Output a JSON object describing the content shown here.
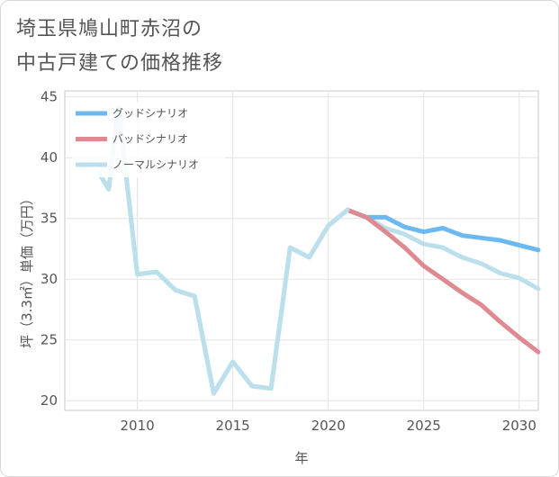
{
  "title": {
    "line1": "埼玉県鳩山町赤沼の",
    "line2": "中古戸建ての価格推移"
  },
  "chart_data": {
    "type": "line",
    "title": "埼玉県鳩山町赤沼の中古戸建ての価格推移",
    "xlabel": "年",
    "ylabel": "坪（3.3㎡）単価（万円）",
    "xlim": [
      2006.2,
      2031
    ],
    "ylim": [
      19.2,
      45.5
    ],
    "xticks": [
      2010,
      2015,
      2020,
      2025,
      2030
    ],
    "yticks": [
      20,
      25,
      30,
      35,
      40,
      45
    ],
    "grid": true,
    "legend_position": "top-left",
    "series": [
      {
        "name": "グッドシナリオ",
        "color": "#6cb8f0",
        "x": [
          2021,
          2022,
          2023,
          2024,
          2025,
          2026,
          2027,
          2028,
          2029,
          2030,
          2031
        ],
        "y": [
          35.7,
          35.1,
          35.1,
          34.3,
          33.9,
          34.2,
          33.6,
          33.4,
          33.2,
          32.8,
          32.4
        ]
      },
      {
        "name": "バッドシナリオ",
        "color": "#de8a90",
        "x": [
          2021,
          2022,
          2023,
          2024,
          2025,
          2026,
          2027,
          2028,
          2029,
          2030,
          2031
        ],
        "y": [
          35.7,
          35.1,
          33.9,
          32.6,
          31.1,
          30.0,
          28.9,
          27.9,
          26.5,
          25.2,
          24.0
        ]
      },
      {
        "name": "ノーマルシナリオ",
        "color": "#bcdfec",
        "x": [
          2008,
          2008.5,
          2009,
          2010,
          2011,
          2012,
          2013,
          2014,
          2015,
          2016,
          2017,
          2018,
          2019,
          2020,
          2021,
          2022,
          2023,
          2024,
          2025,
          2026,
          2027,
          2028,
          2029,
          2030,
          2031
        ],
        "y": [
          38.7,
          37.4,
          44.2,
          30.4,
          30.6,
          29.1,
          28.6,
          20.6,
          23.2,
          21.2,
          21.0,
          32.6,
          31.8,
          34.4,
          35.7,
          35.1,
          34.2,
          33.7,
          32.9,
          32.6,
          31.8,
          31.3,
          30.5,
          30.1,
          29.2
        ]
      }
    ]
  }
}
